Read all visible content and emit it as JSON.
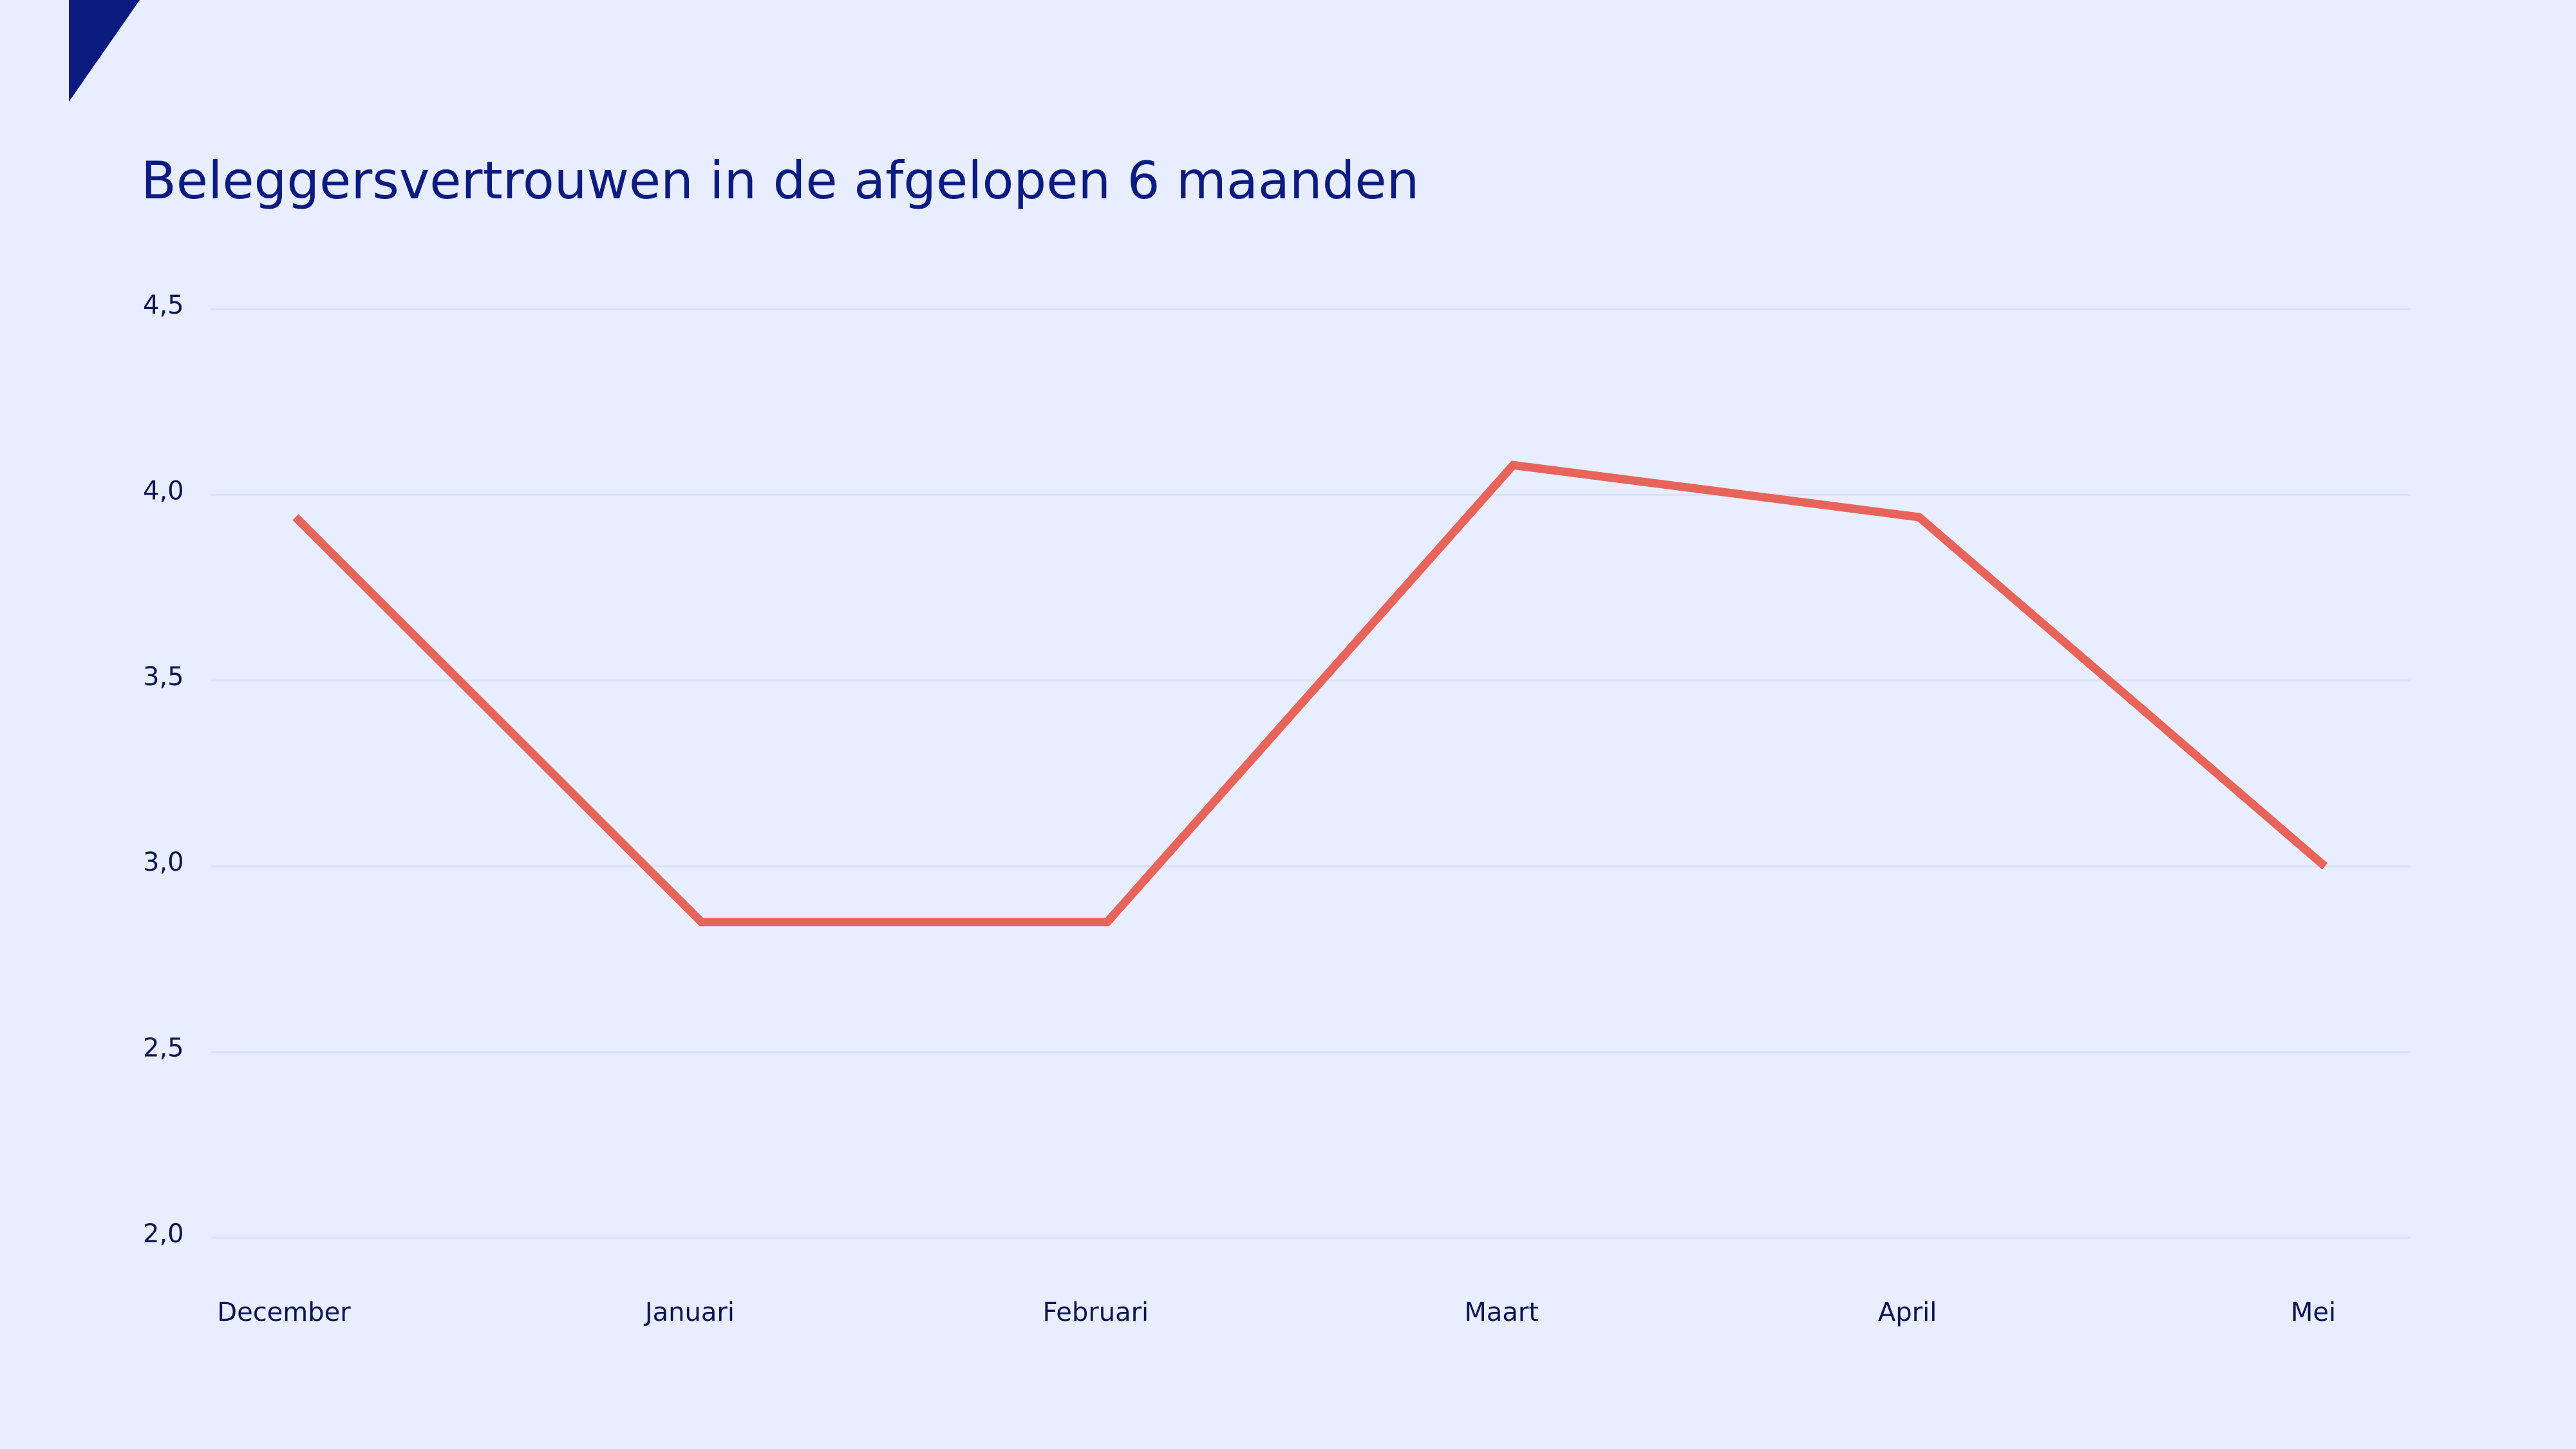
{
  "chart_data": {
    "type": "line",
    "title": "Beleggersvertrouwen in de afgelopen 6 maanden",
    "categories": [
      "December",
      "Januari",
      "Februari",
      "Maart",
      "April",
      "Mei"
    ],
    "values": [
      3.94,
      2.85,
      2.85,
      4.08,
      3.94,
      3.0
    ],
    "color": "#e8645a",
    "ylim": [
      2,
      4.5
    ],
    "yticks": [
      {
        "value": 2,
        "label": "2,0"
      },
      {
        "value": 2.5,
        "label": "2,5"
      },
      {
        "value": 3,
        "label": "3,0"
      },
      {
        "value": 3.5,
        "label": "3,5"
      },
      {
        "value": 4,
        "label": "4,0"
      },
      {
        "value": 4.5,
        "label": "4,5"
      }
    ],
    "grid": true
  }
}
